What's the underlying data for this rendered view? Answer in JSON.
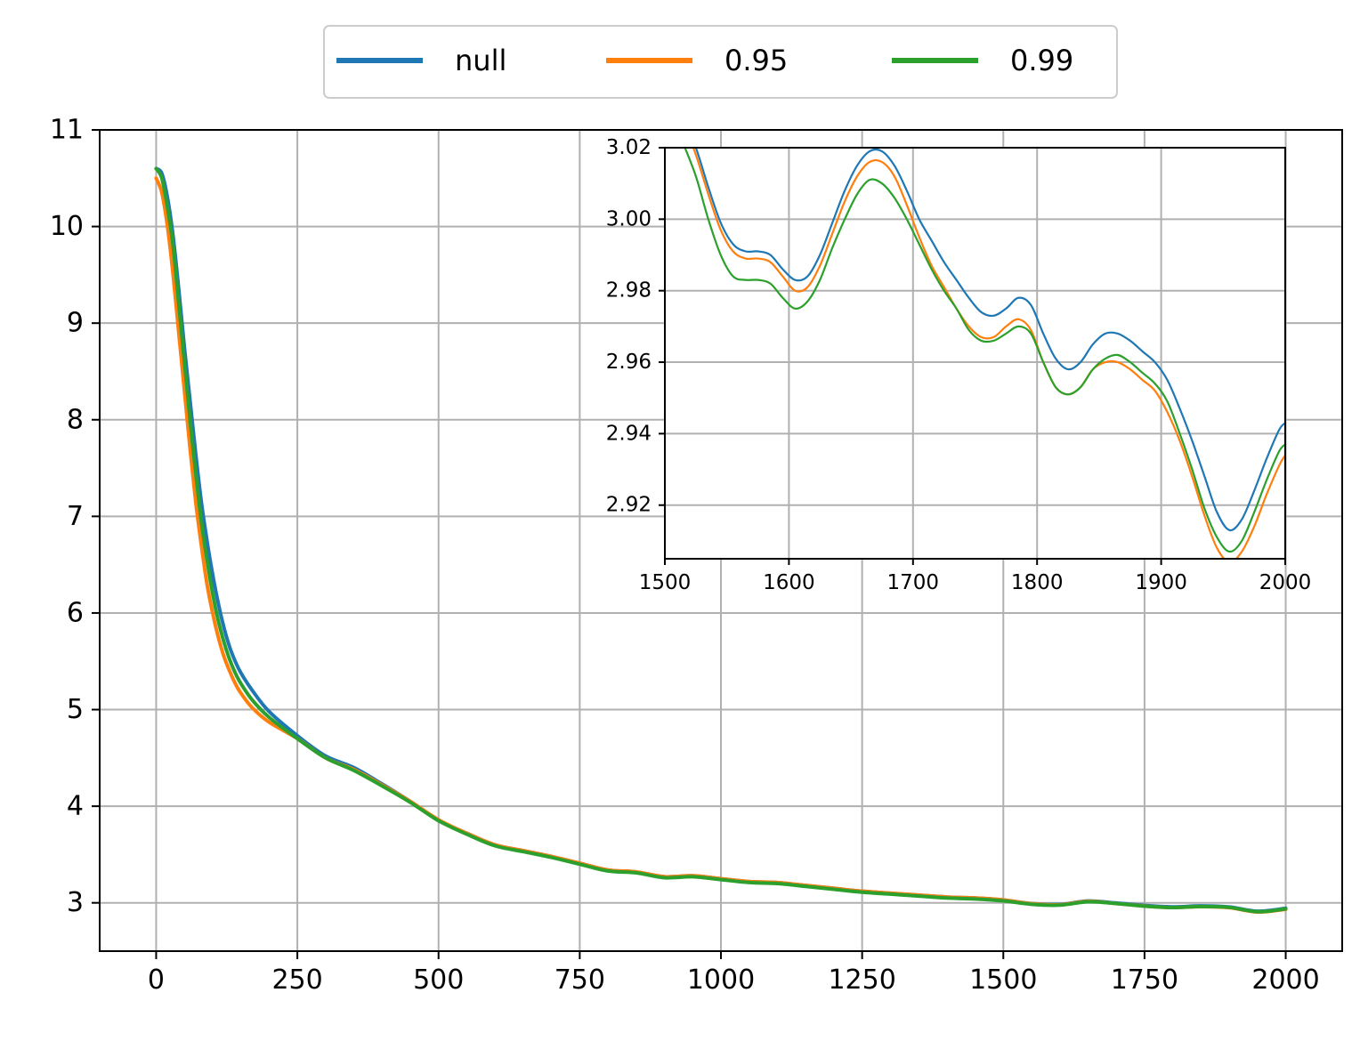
{
  "chart_data": [
    {
      "id": "main",
      "type": "line",
      "title": "",
      "xlabel": "",
      "ylabel": "",
      "xlim": [
        -100,
        2100
      ],
      "ylim": [
        2.5,
        11
      ],
      "x_ticks": [
        0,
        250,
        500,
        750,
        1000,
        1250,
        1500,
        1750,
        2000
      ],
      "y_ticks": [
        3,
        4,
        5,
        6,
        7,
        8,
        9,
        10,
        11
      ],
      "grid": true,
      "legend": {
        "placement": "top-center-outside",
        "columns": 3
      },
      "series": [
        {
          "name": "null",
          "color": "#1f77b4",
          "x": [
            0,
            10,
            20,
            30,
            40,
            50,
            60,
            70,
            80,
            90,
            100,
            110,
            120,
            130,
            140,
            150,
            170,
            200,
            250,
            300,
            350,
            400,
            450,
            500,
            550,
            600,
            650,
            700,
            750,
            800,
            850,
            900,
            950,
            1000,
            1050,
            1100,
            1150,
            1200,
            1250,
            1300,
            1350,
            1400,
            1450,
            1500,
            1550,
            1600,
            1650,
            1700,
            1750,
            1800,
            1850,
            1900,
            1950,
            2000
          ],
          "y": [
            10.6,
            10.55,
            10.3,
            9.9,
            9.35,
            8.75,
            8.2,
            7.65,
            7.15,
            6.75,
            6.4,
            6.1,
            5.85,
            5.65,
            5.5,
            5.38,
            5.2,
            4.98,
            4.73,
            4.52,
            4.4,
            4.23,
            4.05,
            3.85,
            3.72,
            3.6,
            3.54,
            3.48,
            3.41,
            3.34,
            3.32,
            3.27,
            3.28,
            3.25,
            3.22,
            3.21,
            3.18,
            3.15,
            3.12,
            3.1,
            3.08,
            3.06,
            3.05,
            3.03,
            2.993,
            2.983,
            3.019,
            2.998,
            2.973,
            2.958,
            2.968,
            2.957,
            2.913,
            2.943
          ]
        },
        {
          "name": "0.95",
          "color": "#ff7f0e",
          "x": [
            0,
            10,
            20,
            30,
            40,
            50,
            60,
            70,
            80,
            90,
            100,
            110,
            120,
            130,
            140,
            150,
            170,
            200,
            250,
            300,
            350,
            400,
            450,
            500,
            550,
            600,
            650,
            700,
            750,
            800,
            850,
            900,
            950,
            1000,
            1050,
            1100,
            1150,
            1200,
            1250,
            1300,
            1350,
            1400,
            1450,
            1500,
            1550,
            1600,
            1650,
            1700,
            1750,
            1800,
            1850,
            1900,
            1950,
            2000
          ],
          "y": [
            10.5,
            10.35,
            10.0,
            9.5,
            8.9,
            8.3,
            7.7,
            7.15,
            6.7,
            6.3,
            6.0,
            5.75,
            5.55,
            5.4,
            5.27,
            5.17,
            5.02,
            4.87,
            4.7,
            4.5,
            4.38,
            4.22,
            4.05,
            3.86,
            3.72,
            3.6,
            3.54,
            3.48,
            3.41,
            3.34,
            3.32,
            3.27,
            3.28,
            3.25,
            3.22,
            3.21,
            3.18,
            3.15,
            3.12,
            3.1,
            3.08,
            3.06,
            3.05,
            3.03,
            2.99,
            2.98,
            3.016,
            2.993,
            2.967,
            2.951,
            2.961,
            2.95,
            2.905,
            2.933
          ]
        },
        {
          "name": "0.99",
          "color": "#2ca02c",
          "x": [
            0,
            10,
            20,
            30,
            40,
            50,
            60,
            70,
            80,
            90,
            100,
            110,
            120,
            130,
            140,
            150,
            170,
            200,
            250,
            300,
            350,
            400,
            450,
            500,
            550,
            600,
            650,
            700,
            750,
            800,
            850,
            900,
            950,
            1000,
            1050,
            1100,
            1150,
            1200,
            1250,
            1300,
            1350,
            1400,
            1450,
            1500,
            1550,
            1600,
            1650,
            1700,
            1750,
            1800,
            1850,
            1900,
            1950,
            2000
          ],
          "y": [
            10.6,
            10.5,
            10.2,
            9.8,
            9.2,
            8.6,
            8.0,
            7.45,
            6.95,
            6.55,
            6.2,
            5.92,
            5.7,
            5.52,
            5.38,
            5.27,
            5.1,
            4.92,
            4.7,
            4.5,
            4.37,
            4.21,
            4.04,
            3.85,
            3.71,
            3.59,
            3.53,
            3.47,
            3.4,
            3.33,
            3.31,
            3.26,
            3.27,
            3.24,
            3.21,
            3.2,
            3.17,
            3.14,
            3.11,
            3.09,
            3.07,
            3.05,
            3.04,
            3.02,
            2.985,
            2.976,
            3.011,
            2.993,
            2.966,
            2.951,
            2.962,
            2.953,
            2.908,
            2.937
          ]
        }
      ]
    },
    {
      "id": "inset",
      "type": "line",
      "title": "",
      "xlabel": "",
      "ylabel": "",
      "xlim": [
        1500,
        2000
      ],
      "ylim": [
        2.905,
        3.02
      ],
      "x_ticks": [
        1500,
        1600,
        1700,
        1800,
        1900,
        2000
      ],
      "y_ticks": [
        2.92,
        2.94,
        2.96,
        2.98,
        3.0,
        3.02
      ],
      "x_tick_labels": [
        "1500",
        "1600",
        "1700",
        "1800",
        "1900",
        "2000"
      ],
      "y_tick_labels": [
        "2.92",
        "2.94",
        "2.96",
        "2.98",
        "3.00",
        "3.02"
      ],
      "grid": true,
      "series": [
        {
          "name": "null",
          "color": "#1f77b4",
          "x": [
            1515,
            1525,
            1535,
            1545,
            1555,
            1565,
            1575,
            1585,
            1595,
            1605,
            1615,
            1625,
            1635,
            1645,
            1655,
            1665,
            1675,
            1685,
            1695,
            1705,
            1715,
            1725,
            1735,
            1745,
            1755,
            1765,
            1775,
            1785,
            1795,
            1805,
            1815,
            1825,
            1835,
            1845,
            1855,
            1865,
            1875,
            1885,
            1895,
            1905,
            1915,
            1925,
            1935,
            1945,
            1955,
            1965,
            1975,
            1985,
            1995,
            2000
          ],
          "y": [
            3.028,
            3.02,
            3.009,
            2.999,
            2.993,
            2.991,
            2.991,
            2.99,
            2.986,
            2.983,
            2.984,
            2.99,
            2.999,
            3.008,
            3.015,
            3.019,
            3.019,
            3.015,
            3.008,
            3.0,
            2.994,
            2.988,
            2.983,
            2.978,
            2.974,
            2.973,
            2.975,
            2.978,
            2.976,
            2.968,
            2.961,
            2.958,
            2.96,
            2.965,
            2.968,
            2.968,
            2.966,
            2.963,
            2.96,
            2.955,
            2.947,
            2.938,
            2.928,
            2.918,
            2.913,
            2.916,
            2.924,
            2.933,
            2.941,
            2.943
          ]
        },
        {
          "name": "0.95",
          "color": "#ff7f0e",
          "x": [
            1515,
            1525,
            1535,
            1545,
            1555,
            1565,
            1575,
            1585,
            1595,
            1605,
            1615,
            1625,
            1635,
            1645,
            1655,
            1665,
            1675,
            1685,
            1695,
            1705,
            1715,
            1725,
            1735,
            1745,
            1755,
            1765,
            1775,
            1785,
            1795,
            1805,
            1815,
            1825,
            1835,
            1845,
            1855,
            1865,
            1875,
            1885,
            1895,
            1905,
            1915,
            1925,
            1935,
            1945,
            1955,
            1965,
            1975,
            1985,
            1995,
            2000
          ],
          "y": [
            3.027,
            3.018,
            3.007,
            2.997,
            2.991,
            2.989,
            2.989,
            2.988,
            2.984,
            2.98,
            2.981,
            2.987,
            2.996,
            3.005,
            3.012,
            3.016,
            3.016,
            3.012,
            3.004,
            2.995,
            2.987,
            2.981,
            2.975,
            2.97,
            2.967,
            2.967,
            2.97,
            2.972,
            2.969,
            2.96,
            2.953,
            2.951,
            2.953,
            2.958,
            2.96,
            2.96,
            2.958,
            2.955,
            2.952,
            2.946,
            2.938,
            2.928,
            2.917,
            2.908,
            2.904,
            2.907,
            2.914,
            2.923,
            2.931,
            2.934
          ]
        },
        {
          "name": "0.99",
          "color": "#2ca02c",
          "x": [
            1515,
            1525,
            1535,
            1545,
            1555,
            1565,
            1575,
            1585,
            1595,
            1605,
            1615,
            1625,
            1635,
            1645,
            1655,
            1665,
            1675,
            1685,
            1695,
            1705,
            1715,
            1725,
            1735,
            1745,
            1755,
            1765,
            1775,
            1785,
            1795,
            1805,
            1815,
            1825,
            1835,
            1845,
            1855,
            1865,
            1875,
            1885,
            1895,
            1905,
            1915,
            1925,
            1935,
            1945,
            1955,
            1965,
            1975,
            1985,
            1995,
            2000
          ],
          "y": [
            3.021,
            3.012,
            3.0,
            2.99,
            2.984,
            2.983,
            2.983,
            2.982,
            2.978,
            2.975,
            2.977,
            2.983,
            2.992,
            3.0,
            3.007,
            3.011,
            3.01,
            3.006,
            3.0,
            2.993,
            2.986,
            2.98,
            2.975,
            2.969,
            2.966,
            2.966,
            2.968,
            2.97,
            2.968,
            2.96,
            2.953,
            2.951,
            2.953,
            2.958,
            2.961,
            2.962,
            2.96,
            2.957,
            2.954,
            2.949,
            2.94,
            2.93,
            2.919,
            2.911,
            2.907,
            2.91,
            2.918,
            2.927,
            2.935,
            2.937
          ]
        }
      ]
    }
  ]
}
